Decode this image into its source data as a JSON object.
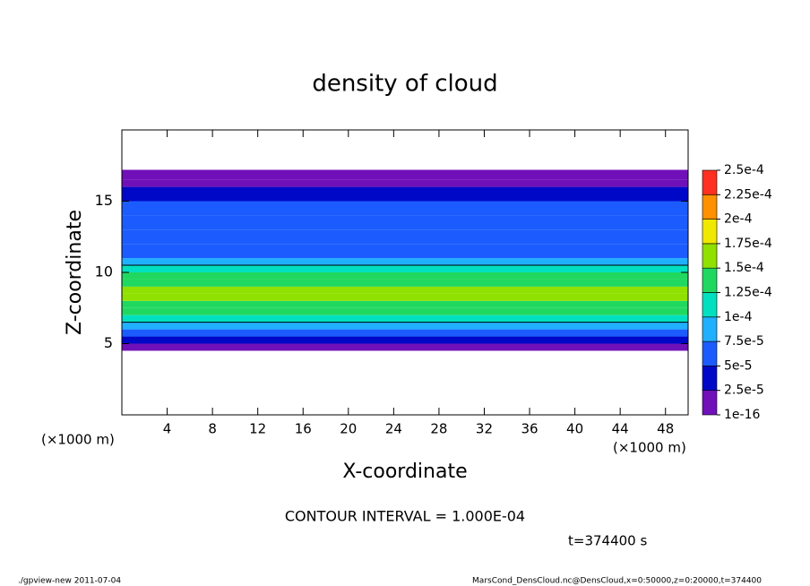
{
  "chart_data": {
    "type": "profile",
    "title": "density of cloud",
    "x_label": "X-coordinate",
    "y_label": "Z-coordinate",
    "x_unit": "(×1000 m)",
    "x_unit_right": "(×1000 m)",
    "contour_note": "CONTOUR INTERVAL = 1.000E-04",
    "time_note": "t=374400 s",
    "footer_left": "./gpview-new  2011-07-04",
    "footer_right": "MarsCond_DensCloud.nc@DensCloud,x=0:50000,z=0:20000,t=374400",
    "xlim": [
      0,
      50
    ],
    "xticks": [
      4,
      8,
      12,
      16,
      20,
      24,
      28,
      32,
      36,
      40,
      44,
      48
    ],
    "ylim": [
      0,
      20
    ],
    "yticks": [
      5,
      10,
      15
    ],
    "z_bins": [
      4.5,
      5,
      5.5,
      6,
      6.5,
      7,
      7.5,
      8,
      8.5,
      9,
      9.5,
      10,
      10.5,
      11,
      12,
      13,
      14,
      15,
      16,
      16.5,
      17.2
    ],
    "values": [
      1e-05,
      3e-05,
      6e-05,
      9e-05,
      0.00011,
      0.00013,
      0.00014,
      0.00015,
      0.00015,
      0.00014,
      0.000125,
      0.000105,
      9e-05,
      7e-05,
      6e-05,
      5e-05,
      5e-05,
      4e-05,
      2e-05,
      1e-05
    ],
    "contour_level": 0.0001,
    "levels": [
      {
        "value": 1e-16,
        "label": "1e-16"
      },
      {
        "value": 2.5e-05,
        "label": "2.5e-5"
      },
      {
        "value": 5e-05,
        "label": "5e-5"
      },
      {
        "value": 7.5e-05,
        "label": "7.5e-5"
      },
      {
        "value": 0.0001,
        "label": "1e-4"
      },
      {
        "value": 0.000125,
        "label": "1.25e-4"
      },
      {
        "value": 0.00015,
        "label": "1.5e-4"
      },
      {
        "value": 0.000175,
        "label": "1.75e-4"
      },
      {
        "value": 0.0002,
        "label": "2e-4"
      },
      {
        "value": 0.000225,
        "label": "2.25e-4"
      },
      {
        "value": 0.00025,
        "label": "2.5e-4"
      }
    ],
    "level_colors": [
      "#7010b8",
      "#0008c8",
      "#1c5cff",
      "#20b0ff",
      "#00e0c0",
      "#20d860",
      "#90e000",
      "#f0e800",
      "#ff9000",
      "#ff3020"
    ]
  }
}
